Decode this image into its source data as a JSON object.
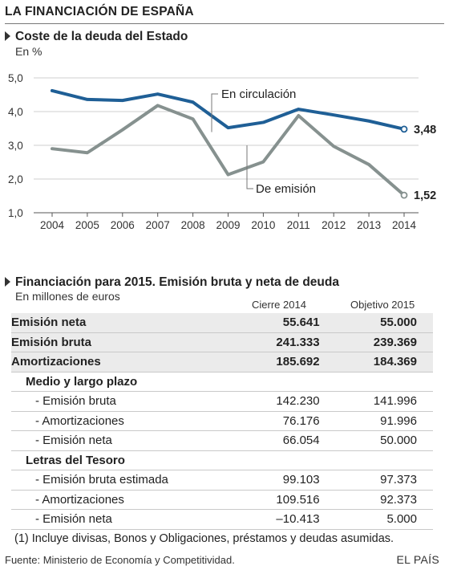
{
  "title": "LA FINANCIACIÓN DE ESPAÑA",
  "chart_data": {
    "type": "line",
    "title": "Coste de la deuda del Estado",
    "unit_label": "En %",
    "x": [
      "2004",
      "2005",
      "2006",
      "2007",
      "2008",
      "2009",
      "2010",
      "2011",
      "2012",
      "2013",
      "2014"
    ],
    "ylim": [
      1.0,
      5.0
    ],
    "yticks": [
      "1,0",
      "2,0",
      "3,0",
      "4,0",
      "5,0"
    ],
    "grid": true,
    "series": [
      {
        "name": "En circulación",
        "color": "#1f5f96",
        "values": [
          4.62,
          4.36,
          4.33,
          4.52,
          4.28,
          3.52,
          3.68,
          4.07,
          3.9,
          3.72,
          3.48
        ],
        "end_label": "3,48"
      },
      {
        "name": "De emisión",
        "color": "#86918f",
        "values": [
          2.9,
          2.78,
          3.46,
          4.18,
          3.78,
          2.13,
          2.51,
          3.88,
          2.97,
          2.43,
          1.52
        ],
        "end_label": "1,52"
      }
    ]
  },
  "table": {
    "title": "Financiación para 2015. Emisión bruta y neta de deuda",
    "unit_label": "En millones de euros",
    "columns": [
      "Cierre 2014",
      "Objetivo 2015"
    ],
    "rows": [
      {
        "label": "Emisión neta",
        "v1": "55.641",
        "v2": "55.000",
        "style": "strong"
      },
      {
        "label": "Emisión bruta",
        "v1": "241.333",
        "v2": "239.369",
        "style": "strong"
      },
      {
        "label": "Amortizaciones",
        "v1": "185.692",
        "v2": "184.369",
        "style": "strong"
      },
      {
        "label": "Medio y largo plazo",
        "v1": "",
        "v2": "",
        "style": "grp"
      },
      {
        "label": "- Emisión bruta",
        "v1": "142.230",
        "v2": "141.996",
        "style": "itm"
      },
      {
        "label": "- Amortizaciones",
        "v1": "76.176",
        "v2": "91.996",
        "style": "itm"
      },
      {
        "label": "- Emisión neta",
        "v1": "66.054",
        "v2": "50.000",
        "style": "itm"
      },
      {
        "label": "Letras del Tesoro",
        "v1": "",
        "v2": "",
        "style": "grp"
      },
      {
        "label": "- Emisión bruta estimada",
        "v1": "99.103",
        "v2": "97.373",
        "style": "itm"
      },
      {
        "label": "- Amortizaciones",
        "v1": "109.516",
        "v2": "92.373",
        "style": "itm"
      },
      {
        "label": "- Emisión neta",
        "v1": "–10.413",
        "v2": "5.000",
        "style": "itm"
      }
    ],
    "note": "(1) Incluye divisas, Bonos y Obligaciones, préstamos y deudas asumidas."
  },
  "source": "Fuente: Ministerio de Economía y Competitividad.",
  "brand": "EL PAÍS"
}
